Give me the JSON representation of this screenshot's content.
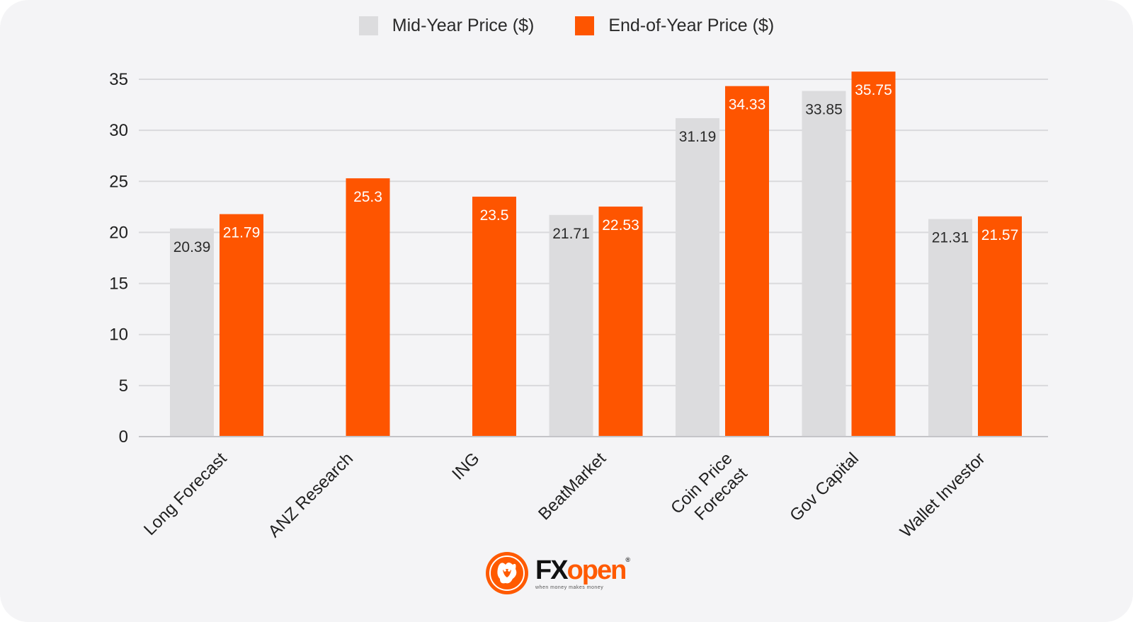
{
  "colors": {
    "mid_year": "#dcdcde",
    "end_of_year": "#fe5500",
    "grid": "#d9d9dc",
    "axis": "#c4c4c8",
    "background": "#f4f4f6"
  },
  "logo": {
    "brand_fx": "FX",
    "brand_open": "open",
    "registered": "®",
    "tagline": "when money makes money",
    "icon": "bull-emblem-icon"
  },
  "chart_data": {
    "type": "bar",
    "title": "",
    "xlabel": "",
    "ylabel": "",
    "ylim": [
      0,
      35
    ],
    "yticks": [
      "0",
      "5",
      "10",
      "15",
      "20",
      "25",
      "30",
      "35"
    ],
    "grid": true,
    "legend_position": "top-center",
    "categories": [
      [
        "Long Forecast"
      ],
      [
        "ANZ Research"
      ],
      [
        "ING"
      ],
      [
        "BeatMarket"
      ],
      [
        "Coin Price",
        "Forecast"
      ],
      [
        "Gov Capital"
      ],
      [
        "Wallet Investor"
      ]
    ],
    "series": [
      {
        "name": "Mid-Year Price ($)",
        "color": "#dcdcde",
        "label_color": "#2a2a2a",
        "values": [
          20.39,
          null,
          null,
          21.71,
          31.19,
          33.85,
          21.31
        ],
        "labels": [
          "20.39",
          "",
          "",
          "21.71",
          "31.19",
          "33.85",
          "21.31"
        ]
      },
      {
        "name": "End-of-Year Price ($)",
        "color": "#fe5500",
        "label_color": "#ffffff",
        "values": [
          21.79,
          25.3,
          23.5,
          22.53,
          34.33,
          35.75,
          21.57
        ],
        "labels": [
          "21.79",
          "25.3",
          "23.5",
          "22.53",
          "34.33",
          "35.75",
          "21.57"
        ]
      }
    ]
  }
}
